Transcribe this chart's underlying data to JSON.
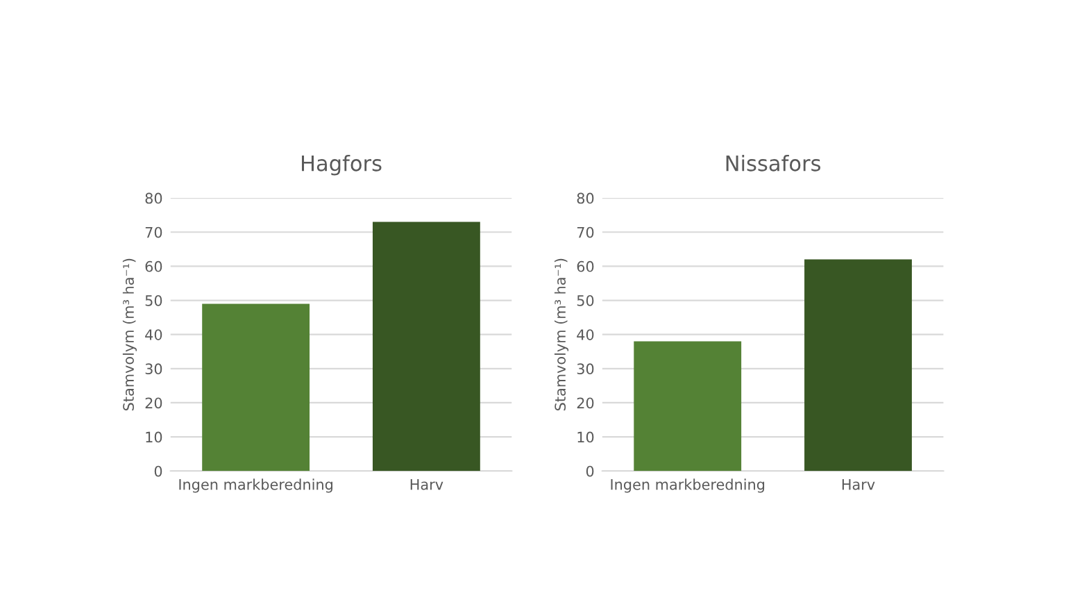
{
  "chart_data": [
    {
      "type": "bar",
      "title": "Hagfors",
      "ylabel": "Stamvolym (m³ ha⁻¹)",
      "categories": [
        "Ingen markberedning",
        "Harv"
      ],
      "values": [
        49,
        73
      ],
      "colors": [
        "#548235",
        "#385723"
      ],
      "ylim": [
        0,
        80
      ],
      "yticks": [
        0,
        10,
        20,
        30,
        40,
        50,
        60,
        70,
        80
      ],
      "grid": "y"
    },
    {
      "type": "bar",
      "title": "Nissafors",
      "ylabel": "Stamvolym (m³ ha⁻¹)",
      "categories": [
        "Ingen markberedning",
        "Harv"
      ],
      "values": [
        38,
        62
      ],
      "colors": [
        "#548235",
        "#385723"
      ],
      "ylim": [
        0,
        80
      ],
      "yticks": [
        0,
        10,
        20,
        30,
        40,
        50,
        60,
        70,
        80
      ],
      "grid": "y"
    }
  ]
}
